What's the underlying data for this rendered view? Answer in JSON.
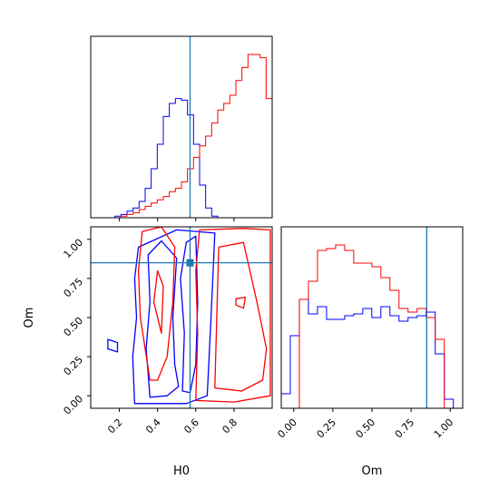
{
  "chart_data": {
    "type": "corner",
    "parameters": [
      "H0",
      "Om"
    ],
    "truth": {
      "H0": 0.57,
      "Om": 0.85
    },
    "truth_color": "#1f77b4",
    "series_colors": [
      "#0000ff",
      "#ff0000"
    ],
    "axes": {
      "H0": {
        "label": "H0",
        "range": [
          0.05,
          1.0
        ],
        "ticks": [
          "0.2",
          "0.4",
          "0.6",
          "0.8"
        ],
        "tick_values": [
          0.2,
          0.4,
          0.6,
          0.8
        ]
      },
      "Om": {
        "label": "Om",
        "range": [
          -0.08,
          1.08
        ],
        "ticks": [
          "0.00",
          "0.25",
          "0.50",
          "0.75",
          "1.00"
        ],
        "tick_values": [
          0.0,
          0.25,
          0.5,
          0.75,
          1.0
        ]
      }
    },
    "hist_H0": {
      "bin_edges": [
        0.05,
        0.0816,
        0.1133,
        0.145,
        0.1766,
        0.2083,
        0.24,
        0.2716,
        0.3033,
        0.335,
        0.3666,
        0.3983,
        0.43,
        0.4616,
        0.4933,
        0.525,
        0.5566,
        0.5883,
        0.62,
        0.6516,
        0.6833,
        0.715,
        0.7466,
        0.7783,
        0.81,
        0.8416,
        0.8733,
        0.905,
        0.9366,
        0.9683,
        1.0
      ],
      "series": [
        {
          "values": [
            0,
            0,
            0,
            0,
            1,
            2,
            4,
            6,
            10,
            18,
            30,
            45,
            62,
            70,
            73,
            72,
            63,
            45,
            20,
            6,
            1,
            0,
            0,
            0,
            0,
            0,
            0,
            0,
            0,
            0
          ]
        },
        {
          "values": [
            0,
            0,
            0,
            0,
            0,
            1,
            2,
            3,
            5,
            7,
            9,
            11,
            13,
            16,
            18,
            22,
            30,
            37,
            44,
            50,
            58,
            66,
            70,
            75,
            84,
            92,
            100,
            100,
            98,
            73
          ]
        }
      ]
    },
    "hist_Om": {
      "bin_edges": [
        -0.08,
        -0.0221,
        0.0358,
        0.0937,
        0.1516,
        0.2095,
        0.2674,
        0.3253,
        0.3832,
        0.4411,
        0.499,
        0.5569,
        0.6148,
        0.6727,
        0.7306,
        0.7885,
        0.8464,
        0.9043,
        0.9622,
        1.0201,
        1.08
      ],
      "series": [
        {
          "values": [
            8,
            40,
            60,
            52,
            56,
            49,
            49,
            51,
            52,
            55,
            50,
            56,
            51,
            48,
            50,
            51,
            53,
            30,
            5,
            0
          ]
        },
        {
          "values": [
            0,
            0,
            60,
            70,
            87,
            88,
            90,
            87,
            80,
            80,
            78,
            72,
            65,
            55,
            53,
            55,
            50,
            38,
            0,
            0
          ]
        }
      ]
    },
    "contours": [
      {
        "series": 0,
        "paths": [
          [
            [
              0.28,
              -0.05
            ],
            [
              0.27,
              0.25
            ],
            [
              0.29,
              0.5
            ],
            [
              0.28,
              0.75
            ],
            [
              0.3,
              0.95
            ],
            [
              0.5,
              1.06
            ],
            [
              0.7,
              1.04
            ],
            [
              0.68,
              0.5
            ],
            [
              0.66,
              0.0
            ],
            [
              0.55,
              -0.05
            ],
            [
              0.45,
              -0.05
            ],
            [
              0.32,
              -0.05
            ]
          ],
          [
            [
              0.36,
              -0.01
            ],
            [
              0.34,
              0.3
            ],
            [
              0.36,
              0.6
            ],
            [
              0.35,
              0.9
            ],
            [
              0.42,
              0.99
            ],
            [
              0.5,
              0.88
            ],
            [
              0.48,
              0.5
            ],
            [
              0.49,
              0.2
            ],
            [
              0.51,
              0.06
            ],
            [
              0.45,
              0.0
            ]
          ],
          [
            [
              0.53,
              0.03
            ],
            [
              0.54,
              0.4
            ],
            [
              0.52,
              0.75
            ],
            [
              0.55,
              0.98
            ],
            [
              0.6,
              1.02
            ],
            [
              0.61,
              0.6
            ],
            [
              0.6,
              0.2
            ],
            [
              0.57,
              0.02
            ]
          ],
          [
            [
              0.14,
              0.3
            ],
            [
              0.19,
              0.28
            ],
            [
              0.19,
              0.34
            ],
            [
              0.14,
              0.36
            ]
          ]
        ]
      },
      {
        "series": 1,
        "paths": [
          [
            [
              0.36,
              0.1
            ],
            [
              0.31,
              0.5
            ],
            [
              0.3,
              0.8
            ],
            [
              0.32,
              1.05
            ],
            [
              0.42,
              1.08
            ],
            [
              0.49,
              0.95
            ],
            [
              0.48,
              0.6
            ],
            [
              0.45,
              0.25
            ],
            [
              0.4,
              0.1
            ]
          ],
          [
            [
              0.4,
              0.8
            ],
            [
              0.38,
              0.6
            ],
            [
              0.42,
              0.4
            ],
            [
              0.43,
              0.7
            ]
          ],
          [
            [
              0.6,
              -0.03
            ],
            [
              0.61,
              0.4
            ],
            [
              0.6,
              0.8
            ],
            [
              0.62,
              1.06
            ],
            [
              0.85,
              1.07
            ],
            [
              0.99,
              1.06
            ],
            [
              0.99,
              0.0
            ],
            [
              0.8,
              -0.04
            ]
          ],
          [
            [
              0.7,
              0.05
            ],
            [
              0.71,
              0.5
            ],
            [
              0.72,
              0.95
            ],
            [
              0.85,
              0.98
            ],
            [
              0.92,
              0.6
            ],
            [
              0.97,
              0.3
            ],
            [
              0.95,
              0.1
            ],
            [
              0.84,
              0.03
            ]
          ],
          [
            [
              0.81,
              0.58
            ],
            [
              0.85,
              0.56
            ],
            [
              0.86,
              0.63
            ],
            [
              0.81,
              0.62
            ]
          ]
        ]
      }
    ],
    "title": "",
    "xlabel": "H0",
    "ylabel": "Om"
  }
}
